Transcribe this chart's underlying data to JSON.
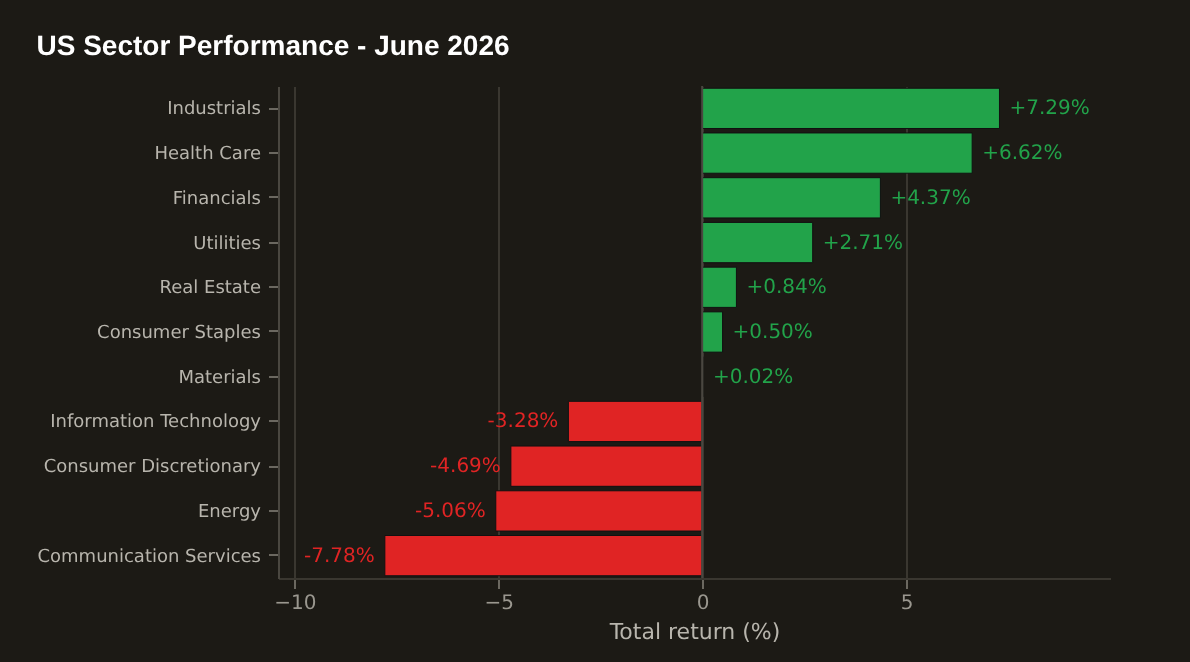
{
  "chart_data": {
    "type": "bar",
    "orientation": "horizontal",
    "title": "US Sector Performance - June 2026",
    "xlabel": "Total return (%)",
    "categories": [
      "Industrials",
      "Health Care",
      "Financials",
      "Utilities",
      "Real Estate",
      "Consumer Staples",
      "Materials",
      "Information Technology",
      "Consumer Discretionary",
      "Energy",
      "Communication Services"
    ],
    "values": [
      7.29,
      6.62,
      4.37,
      2.71,
      0.84,
      0.5,
      0.02,
      -3.28,
      -4.69,
      -5.06,
      -7.78
    ],
    "colors": [
      "#22a34a",
      "#22a34a",
      "#22a34a",
      "#22a34a",
      "#22a34a",
      "#22a34a",
      "#22a34a",
      "#e02424",
      "#e02424",
      "#e02424",
      "#e02424"
    ],
    "value_labels": [
      "+7.29%",
      "+6.62%",
      "+4.37%",
      "+2.71%",
      "+0.84%",
      "+0.50%",
      "+0.02%",
      "-3.28%",
      "-4.69%",
      "-5.06%",
      "-7.78%"
    ],
    "xlim": [
      -10.4,
      10
    ],
    "xticks": [
      {
        "value": -10,
        "label": "−10"
      },
      {
        "value": -5,
        "label": "−5"
      },
      0,
      5
    ],
    "grid": "x"
  }
}
